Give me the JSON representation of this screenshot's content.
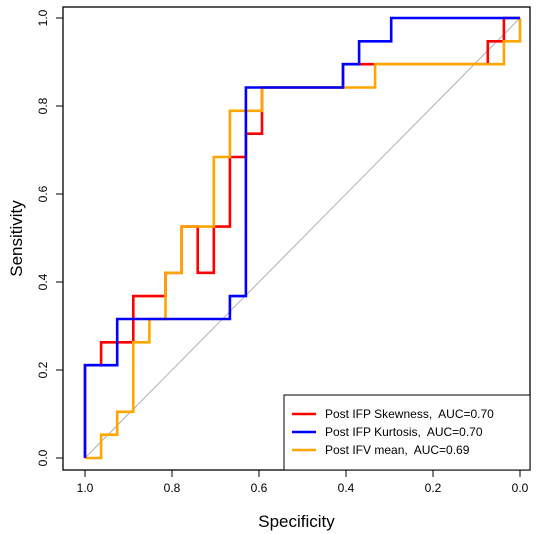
{
  "chart_data": {
    "type": "line",
    "xlabel": "Specificity",
    "ylabel": "Sensitivity",
    "xlim": [
      1.0,
      0.0
    ],
    "ylim": [
      0.0,
      1.0
    ],
    "x_reversed": true,
    "xticks": [
      1.0,
      0.8,
      0.6,
      0.4,
      0.2,
      0.0
    ],
    "xtick_labels": [
      "1.0",
      "0.8",
      "0.6",
      "0.4",
      "0.2",
      "0.0"
    ],
    "yticks": [
      0.0,
      0.2,
      0.4,
      0.6,
      0.8,
      1.0
    ],
    "ytick_labels": [
      "0.0",
      "0.2",
      "0.4",
      "0.6",
      "0.8",
      "1.0"
    ],
    "grid": false,
    "legend_position": "bottom-right",
    "diagonal_color": "#b0b0b0",
    "series": [
      {
        "name": "Post IFP Skewness",
        "auc_label": "AUC=0.70",
        "color": "#ff0000",
        "points": [
          [
            1.0,
            0.0
          ],
          [
            1.0,
            0.211
          ],
          [
            0.963,
            0.211
          ],
          [
            0.963,
            0.263
          ],
          [
            0.889,
            0.263
          ],
          [
            0.889,
            0.368
          ],
          [
            0.815,
            0.368
          ],
          [
            0.815,
            0.421
          ],
          [
            0.778,
            0.421
          ],
          [
            0.778,
            0.526
          ],
          [
            0.741,
            0.526
          ],
          [
            0.741,
            0.421
          ],
          [
            0.704,
            0.421
          ],
          [
            0.704,
            0.526
          ],
          [
            0.667,
            0.526
          ],
          [
            0.667,
            0.579
          ],
          [
            0.667,
            0.684
          ],
          [
            0.63,
            0.684
          ],
          [
            0.63,
            0.737
          ],
          [
            0.593,
            0.737
          ],
          [
            0.593,
            0.789
          ],
          [
            0.593,
            0.842
          ],
          [
            0.407,
            0.842
          ],
          [
            0.407,
            0.895
          ],
          [
            0.259,
            0.895
          ],
          [
            0.074,
            0.895
          ],
          [
            0.074,
            0.947
          ],
          [
            0.037,
            0.947
          ],
          [
            0.037,
            1.0
          ],
          [
            0.0,
            1.0
          ]
        ]
      },
      {
        "name": "Post IFP Kurtosis",
        "auc_label": "AUC=0.70",
        "color": "#0000ff",
        "points": [
          [
            1.0,
            0.0
          ],
          [
            1.0,
            0.211
          ],
          [
            0.926,
            0.211
          ],
          [
            0.926,
            0.316
          ],
          [
            0.667,
            0.316
          ],
          [
            0.667,
            0.368
          ],
          [
            0.63,
            0.368
          ],
          [
            0.63,
            0.842
          ],
          [
            0.556,
            0.842
          ],
          [
            0.407,
            0.842
          ],
          [
            0.407,
            0.895
          ],
          [
            0.37,
            0.895
          ],
          [
            0.37,
            0.947
          ],
          [
            0.296,
            0.947
          ],
          [
            0.296,
            1.0
          ],
          [
            0.0,
            1.0
          ]
        ]
      },
      {
        "name": "Post IFV mean",
        "auc_label": "AUC=0.69",
        "color": "#ffa500",
        "points": [
          [
            1.0,
            0.0
          ],
          [
            0.963,
            0.0
          ],
          [
            0.963,
            0.053
          ],
          [
            0.926,
            0.053
          ],
          [
            0.926,
            0.105
          ],
          [
            0.889,
            0.105
          ],
          [
            0.889,
            0.263
          ],
          [
            0.852,
            0.263
          ],
          [
            0.852,
            0.316
          ],
          [
            0.815,
            0.316
          ],
          [
            0.815,
            0.421
          ],
          [
            0.778,
            0.421
          ],
          [
            0.778,
            0.526
          ],
          [
            0.704,
            0.526
          ],
          [
            0.704,
            0.684
          ],
          [
            0.667,
            0.684
          ],
          [
            0.667,
            0.789
          ],
          [
            0.593,
            0.789
          ],
          [
            0.593,
            0.842
          ],
          [
            0.556,
            0.842
          ],
          [
            0.556,
            0.842
          ],
          [
            0.333,
            0.842
          ],
          [
            0.333,
            0.895
          ],
          [
            0.037,
            0.895
          ],
          [
            0.037,
            0.947
          ],
          [
            0.0,
            0.947
          ],
          [
            0.0,
            1.0
          ]
        ]
      }
    ]
  }
}
